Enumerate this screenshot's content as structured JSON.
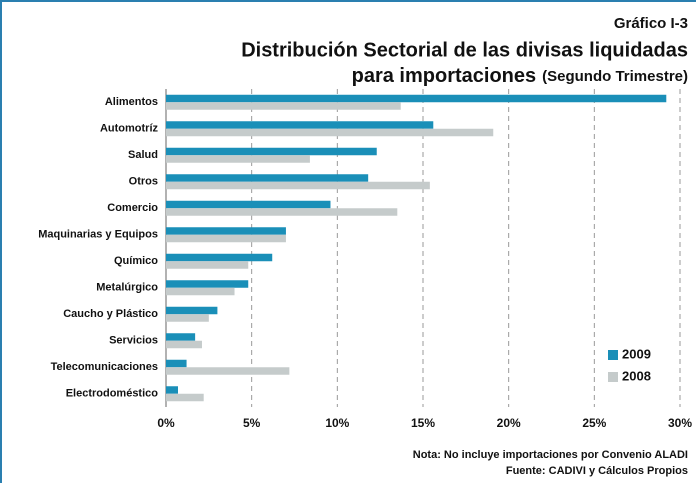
{
  "chart_data": {
    "type": "barh",
    "title_line1": "Gráfico I-3",
    "title_line2": "Distribución Sectorial de las divisas liquidadas",
    "title_line3": "para importaciones",
    "subtitle": "(Segundo Trimestre)",
    "categories": [
      "Alimentos",
      "Automotríz",
      "Salud",
      "Otros",
      "Comercio",
      "Maquinarias y Equipos",
      "Químico",
      "Metalúrgico",
      "Caucho y Plástico",
      "Servicios",
      "Telecomunicaciones",
      "Electrodoméstico"
    ],
    "series": [
      {
        "name": "2009",
        "color": "#1a8fb8",
        "values": [
          29.2,
          15.6,
          12.3,
          11.8,
          9.6,
          7.0,
          6.2,
          4.8,
          3.0,
          1.7,
          1.2,
          0.7
        ]
      },
      {
        "name": "2008",
        "color": "#c5cbcb",
        "values": [
          13.7,
          19.1,
          8.4,
          15.4,
          13.5,
          7.0,
          4.8,
          4.0,
          2.5,
          2.1,
          7.2,
          2.2
        ]
      }
    ],
    "xlim": [
      0,
      30
    ],
    "xticks": [
      {
        "value": 0,
        "label": "0%"
      },
      {
        "value": 5,
        "label": "5%"
      },
      {
        "value": 10,
        "label": "10%"
      },
      {
        "value": 15,
        "label": "15%"
      },
      {
        "value": 20,
        "label": "20%"
      },
      {
        "value": 25,
        "label": "25%"
      },
      {
        "value": 30,
        "label": "30%"
      }
    ],
    "grid": true,
    "legend": "lower right",
    "note": "Nota: No incluye importaciones por Convenio ALADI",
    "source": "Fuente:  CADIVI y Cálculos Propios"
  }
}
